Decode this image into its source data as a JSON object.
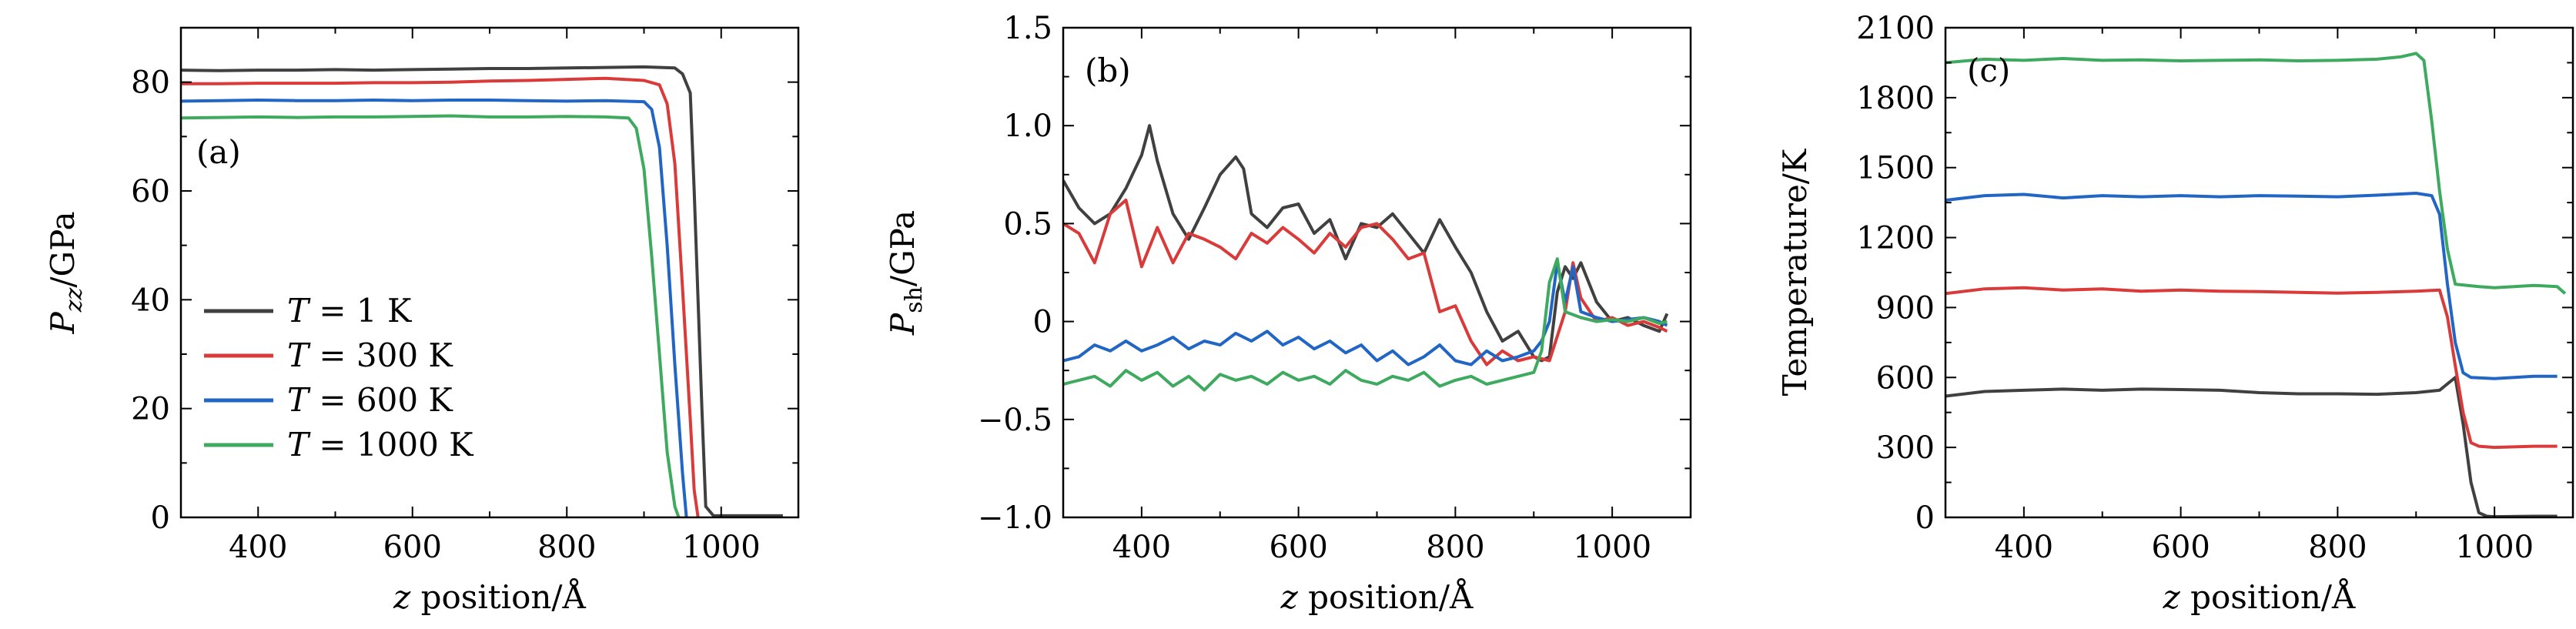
{
  "figure_colors": {
    "T1": "#404040",
    "T300": "#d93a3a",
    "T600": "#2166c4",
    "T1000": "#3daa5f",
    "axes": "#000000"
  },
  "chart_data": [
    {
      "panel": "(a)",
      "type": "line",
      "xlabel_italic": "z",
      "xlabel_rest": " position/Å",
      "ylabel_main": "P",
      "ylabel_sub": "zz",
      "ylabel_rest": "/GPa",
      "xlim": [
        300,
        1100
      ],
      "ylim": [
        0,
        90
      ],
      "xticks": [
        400,
        600,
        800,
        1000
      ],
      "yticks": [
        0,
        20,
        40,
        60,
        80
      ],
      "grid": false,
      "legend_position": "lower-left",
      "legend": [
        {
          "italic": "T",
          "text": " = 1 K"
        },
        {
          "italic": "T",
          "text": " = 300 K"
        },
        {
          "italic": "T",
          "text": " = 600 K"
        },
        {
          "italic": "T",
          "text": " = 1000 K"
        }
      ],
      "series": [
        {
          "name": "T = 1 K",
          "color": "#404040",
          "x": [
            300,
            350,
            400,
            450,
            500,
            550,
            600,
            650,
            700,
            750,
            800,
            850,
            900,
            940,
            950,
            960,
            965,
            970,
            975,
            980,
            990,
            1080
          ],
          "y": [
            82.2,
            82.1,
            82.2,
            82.2,
            82.3,
            82.2,
            82.3,
            82.4,
            82.5,
            82.5,
            82.6,
            82.7,
            82.8,
            82.6,
            81.5,
            78,
            60,
            40,
            20,
            2,
            0.3,
            0.3
          ]
        },
        {
          "name": "T = 300 K",
          "color": "#d93a3a",
          "x": [
            300,
            350,
            400,
            450,
            500,
            550,
            600,
            650,
            700,
            750,
            800,
            850,
            900,
            920,
            930,
            940,
            950,
            960,
            965,
            970
          ],
          "y": [
            79.7,
            79.7,
            79.8,
            79.8,
            79.8,
            79.9,
            79.9,
            80,
            80.2,
            80.3,
            80.5,
            80.7,
            80.3,
            79.5,
            76,
            65,
            42,
            18,
            5,
            0
          ]
        },
        {
          "name": "T = 600 K",
          "color": "#2166c4",
          "x": [
            300,
            350,
            400,
            450,
            500,
            550,
            600,
            650,
            700,
            750,
            800,
            850,
            900,
            910,
            920,
            930,
            940,
            950,
            955
          ],
          "y": [
            76.5,
            76.6,
            76.7,
            76.6,
            76.6,
            76.7,
            76.6,
            76.7,
            76.7,
            76.6,
            76.5,
            76.6,
            76.4,
            75,
            68,
            50,
            28,
            8,
            0
          ]
        },
        {
          "name": "T = 1000 K",
          "color": "#3daa5f",
          "x": [
            300,
            350,
            400,
            450,
            500,
            550,
            600,
            650,
            700,
            750,
            800,
            850,
            880,
            890,
            900,
            910,
            920,
            930,
            940,
            945
          ],
          "y": [
            73.4,
            73.5,
            73.6,
            73.5,
            73.6,
            73.6,
            73.7,
            73.8,
            73.6,
            73.6,
            73.7,
            73.6,
            73.4,
            71.5,
            64,
            48,
            30,
            12,
            2,
            0
          ]
        }
      ]
    },
    {
      "panel": "(b)",
      "type": "line",
      "xlabel_italic": "z",
      "xlabel_rest": " position/Å",
      "ylabel_main": "P",
      "ylabel_sub": "sh",
      "ylabel_rest": "/GPa",
      "xlim": [
        300,
        1100
      ],
      "ylim": [
        -1.0,
        1.5
      ],
      "xticks": [
        400,
        600,
        800,
        1000
      ],
      "yticks": [
        -1.0,
        -0.5,
        0,
        0.5,
        1.0,
        1.5
      ],
      "ytick_labels": [
        "−1.0",
        "−0.5",
        "0",
        "0.5",
        "1.0",
        "1.5"
      ],
      "grid": false,
      "series": [
        {
          "name": "T = 1 K",
          "color": "#404040",
          "x": [
            300,
            320,
            340,
            360,
            380,
            400,
            410,
            420,
            440,
            460,
            480,
            500,
            520,
            530,
            540,
            560,
            580,
            600,
            620,
            640,
            660,
            680,
            700,
            720,
            740,
            760,
            780,
            800,
            820,
            840,
            860,
            880,
            900,
            910,
            920,
            930,
            940,
            950,
            960,
            970,
            980,
            1000,
            1020,
            1040,
            1060,
            1070
          ],
          "y": [
            0.72,
            0.58,
            0.5,
            0.55,
            0.68,
            0.85,
            1.0,
            0.82,
            0.55,
            0.42,
            0.58,
            0.75,
            0.84,
            0.78,
            0.55,
            0.48,
            0.58,
            0.6,
            0.45,
            0.52,
            0.32,
            0.5,
            0.48,
            0.55,
            0.45,
            0.35,
            0.52,
            0.38,
            0.25,
            0.05,
            -0.1,
            -0.05,
            -0.18,
            -0.2,
            -0.18,
            0.15,
            0.28,
            0.22,
            0.3,
            0.2,
            0.1,
            0.0,
            0.02,
            -0.02,
            -0.05,
            0.04
          ]
        },
        {
          "name": "T = 300 K",
          "color": "#d93a3a",
          "x": [
            300,
            320,
            340,
            360,
            380,
            400,
            420,
            440,
            460,
            480,
            500,
            520,
            540,
            560,
            580,
            600,
            620,
            640,
            660,
            680,
            700,
            720,
            740,
            760,
            780,
            800,
            820,
            840,
            860,
            880,
            900,
            920,
            940,
            950,
            960,
            980,
            1000,
            1020,
            1040,
            1060,
            1070
          ],
          "y": [
            0.5,
            0.45,
            0.3,
            0.55,
            0.62,
            0.28,
            0.48,
            0.3,
            0.45,
            0.42,
            0.38,
            0.32,
            0.45,
            0.4,
            0.48,
            0.42,
            0.35,
            0.45,
            0.38,
            0.48,
            0.5,
            0.42,
            0.32,
            0.35,
            0.05,
            0.08,
            -0.1,
            -0.22,
            -0.15,
            -0.2,
            -0.18,
            -0.2,
            0.05,
            0.3,
            0.12,
            0.0,
            0.02,
            -0.02,
            0.0,
            -0.03,
            -0.05
          ]
        },
        {
          "name": "T = 600 K",
          "color": "#2166c4",
          "x": [
            300,
            320,
            340,
            360,
            380,
            400,
            420,
            440,
            460,
            480,
            500,
            520,
            540,
            560,
            580,
            600,
            620,
            640,
            660,
            680,
            700,
            720,
            740,
            760,
            780,
            800,
            820,
            840,
            860,
            880,
            900,
            910,
            920,
            930,
            940,
            950,
            960,
            980,
            1000,
            1020,
            1040,
            1060,
            1070
          ],
          "y": [
            -0.2,
            -0.18,
            -0.12,
            -0.15,
            -0.1,
            -0.15,
            -0.12,
            -0.08,
            -0.14,
            -0.1,
            -0.12,
            -0.06,
            -0.1,
            -0.05,
            -0.12,
            -0.08,
            -0.14,
            -0.1,
            -0.16,
            -0.12,
            -0.2,
            -0.15,
            -0.22,
            -0.18,
            -0.12,
            -0.2,
            -0.22,
            -0.15,
            -0.2,
            -0.18,
            -0.15,
            -0.1,
            0.0,
            0.3,
            0.1,
            0.28,
            0.05,
            0.02,
            0.0,
            0.01,
            0.02,
            0.0,
            -0.02
          ]
        },
        {
          "name": "T = 1000 K",
          "color": "#3daa5f",
          "x": [
            300,
            320,
            340,
            360,
            380,
            400,
            420,
            440,
            460,
            480,
            500,
            520,
            540,
            560,
            580,
            600,
            620,
            640,
            660,
            680,
            700,
            720,
            740,
            760,
            780,
            800,
            820,
            840,
            860,
            880,
            900,
            910,
            920,
            930,
            940,
            960,
            980,
            1000,
            1020,
            1040,
            1060,
            1070
          ],
          "y": [
            -0.32,
            -0.3,
            -0.28,
            -0.33,
            -0.25,
            -0.3,
            -0.26,
            -0.33,
            -0.28,
            -0.35,
            -0.27,
            -0.3,
            -0.28,
            -0.32,
            -0.26,
            -0.3,
            -0.28,
            -0.32,
            -0.25,
            -0.3,
            -0.32,
            -0.28,
            -0.3,
            -0.26,
            -0.33,
            -0.3,
            -0.28,
            -0.32,
            -0.3,
            -0.28,
            -0.26,
            -0.15,
            0.2,
            0.32,
            0.05,
            0.02,
            0.0,
            0.01,
            0.0,
            0.02,
            -0.01,
            0.0
          ]
        }
      ]
    },
    {
      "panel": "(c)",
      "type": "line",
      "xlabel_italic": "z",
      "xlabel_rest": " position/Å",
      "ylabel_main": "Temperature/K",
      "ylabel_sub": "",
      "ylabel_rest": "",
      "xlim": [
        300,
        1100
      ],
      "ylim": [
        0,
        2100
      ],
      "xticks": [
        400,
        600,
        800,
        1000
      ],
      "yticks": [
        0,
        300,
        600,
        900,
        1200,
        1500,
        1800,
        2100
      ],
      "grid": false,
      "series": [
        {
          "name": "T = 1 K",
          "color": "#404040",
          "x": [
            300,
            350,
            400,
            450,
            500,
            550,
            600,
            650,
            700,
            750,
            800,
            850,
            900,
            930,
            950,
            960,
            970,
            980,
            990,
            1000,
            1050,
            1080
          ],
          "y": [
            520,
            540,
            545,
            550,
            545,
            550,
            548,
            545,
            535,
            530,
            530,
            528,
            535,
            545,
            600,
            400,
            150,
            20,
            5,
            3,
            5,
            5
          ]
        },
        {
          "name": "T = 300 K",
          "color": "#d93a3a",
          "x": [
            300,
            350,
            400,
            450,
            500,
            550,
            600,
            650,
            700,
            750,
            800,
            850,
            900,
            930,
            940,
            950,
            960,
            970,
            980,
            1000,
            1050,
            1080
          ],
          "y": [
            960,
            980,
            985,
            975,
            980,
            970,
            975,
            970,
            968,
            965,
            962,
            965,
            970,
            975,
            860,
            650,
            450,
            320,
            305,
            300,
            305,
            305
          ]
        },
        {
          "name": "T = 600 K",
          "color": "#2166c4",
          "x": [
            300,
            350,
            400,
            450,
            500,
            550,
            600,
            650,
            700,
            750,
            800,
            850,
            900,
            920,
            930,
            940,
            950,
            960,
            970,
            1000,
            1050,
            1080
          ],
          "y": [
            1360,
            1380,
            1385,
            1370,
            1380,
            1375,
            1380,
            1375,
            1380,
            1378,
            1375,
            1382,
            1390,
            1380,
            1300,
            1000,
            750,
            620,
            600,
            595,
            605,
            605
          ]
        },
        {
          "name": "T = 1000 K",
          "color": "#3daa5f",
          "x": [
            300,
            350,
            400,
            450,
            500,
            550,
            600,
            650,
            700,
            750,
            800,
            850,
            880,
            900,
            910,
            920,
            930,
            940,
            950,
            980,
            1000,
            1050,
            1080,
            1090
          ],
          "y": [
            1950,
            1965,
            1960,
            1968,
            1960,
            1962,
            1958,
            1960,
            1962,
            1958,
            1960,
            1965,
            1975,
            1990,
            1960,
            1700,
            1400,
            1150,
            1000,
            990,
            985,
            995,
            990,
            960
          ]
        }
      ]
    }
  ],
  "panel_labels": [
    "(a)",
    "(b)",
    "(c)"
  ]
}
